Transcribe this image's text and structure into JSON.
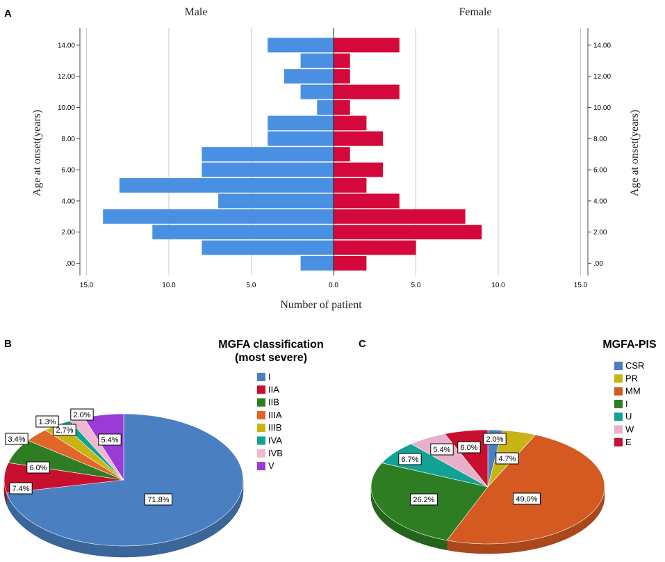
{
  "panels": {
    "a": "A",
    "b": "B",
    "c": "C"
  },
  "colors": {
    "male": "#4a90e2",
    "female": "#d4083a",
    "grid": "#c8c8c8"
  },
  "chart_data": [
    {
      "type": "bar",
      "subtype": "population-pyramid",
      "side_titles": {
        "left": "Male",
        "right": "Female"
      },
      "xlabel": "Number of patient",
      "ylabel_left": "Age at onset(years)",
      "ylabel_right": "Age at onset(years)",
      "xlim": [
        -15,
        15
      ],
      "ylim": [
        -0.5,
        15
      ],
      "xticks": [
        {
          "v": -15,
          "label": "15.0"
        },
        {
          "v": -10,
          "label": "10.0"
        },
        {
          "v": -5,
          "label": "5.0"
        },
        {
          "v": 0,
          "label": "0.0"
        },
        {
          "v": 5,
          "label": "5.0"
        },
        {
          "v": 10,
          "label": "10.0"
        },
        {
          "v": 15,
          "label": "15.0"
        }
      ],
      "yticks": [
        {
          "v": 0,
          "label": ".00"
        },
        {
          "v": 2,
          "label": "2.00"
        },
        {
          "v": 4,
          "label": "4.00"
        },
        {
          "v": 6,
          "label": "6.00"
        },
        {
          "v": 8,
          "label": "8.00"
        },
        {
          "v": 10,
          "label": "10.00"
        },
        {
          "v": 12,
          "label": "12.00"
        },
        {
          "v": 14,
          "label": "14.00"
        }
      ],
      "ages": [
        0,
        1,
        2,
        3,
        4,
        5,
        6,
        7,
        8,
        9,
        10,
        11,
        12,
        13,
        14
      ],
      "series": [
        {
          "name": "Male",
          "values": [
            2,
            8,
            11,
            14,
            7,
            13,
            8,
            8,
            4,
            4,
            1,
            2,
            3,
            2,
            4
          ]
        },
        {
          "name": "Female",
          "values": [
            2,
            5,
            9,
            8,
            4,
            2,
            3,
            1,
            3,
            2,
            1,
            4,
            1,
            1,
            4
          ]
        }
      ]
    },
    {
      "type": "pie",
      "title_lines": [
        "MGFA classification",
        "(most severe)"
      ],
      "slices": [
        {
          "name": "I",
          "value": 71.8,
          "label": "71.8%",
          "color": "#4a7fc1"
        },
        {
          "name": "IIA",
          "value": 7.4,
          "label": "7.4%",
          "color": "#c8102e"
        },
        {
          "name": "IIB",
          "value": 6.0,
          "label": "6.0%",
          "color": "#2e7d23"
        },
        {
          "name": "IIIA",
          "value": 3.4,
          "label": "3.4%",
          "color": "#e0662a"
        },
        {
          "name": "IIIB",
          "value": 2.7,
          "label": "2.7%",
          "color": "#c8b414"
        },
        {
          "name": "IVA",
          "value": 1.3,
          "label": "1.3%",
          "color": "#12a295"
        },
        {
          "name": "IVB",
          "value": 2.0,
          "label": "2.0%",
          "color": "#f0b8d0"
        },
        {
          "name": "V",
          "value": 5.4,
          "label": "5.4%",
          "color": "#9a3bd6"
        }
      ]
    },
    {
      "type": "pie",
      "title_lines": [
        "MGFA-PIS"
      ],
      "slices": [
        {
          "name": "CSR",
          "value": 2.0,
          "label": "2.0%",
          "color": "#4a7fc1"
        },
        {
          "name": "PR",
          "value": 4.7,
          "label": "4.7%",
          "color": "#c8b414"
        },
        {
          "name": "MM",
          "value": 49.0,
          "label": "49.0%",
          "color": "#d45a22"
        },
        {
          "name": "I",
          "value": 26.2,
          "label": "26.2%",
          "color": "#2e7d23"
        },
        {
          "name": "U",
          "value": 6.7,
          "label": "6.7%",
          "color": "#12a295"
        },
        {
          "name": "W",
          "value": 5.4,
          "label": "5.4%",
          "color": "#e8b0c8"
        },
        {
          "name": "E",
          "value": 6.0,
          "label": "6.0%",
          "color": "#c8102e"
        }
      ]
    }
  ]
}
